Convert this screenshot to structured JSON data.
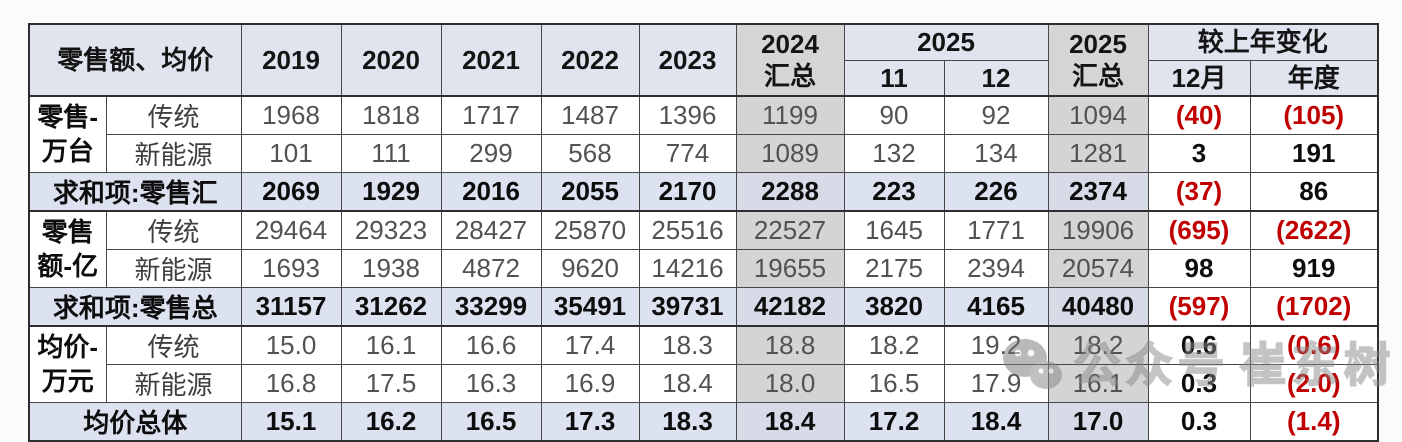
{
  "header": {
    "corner": "零售额、均价",
    "years": [
      "2019",
      "2020",
      "2021",
      "2022",
      "2023"
    ],
    "sum2024": "2024\n汇总",
    "y2025": "2025",
    "m11": "11",
    "m12": "12",
    "sum2025": "2025\n汇总",
    "change": "较上年变化",
    "change_dec": "12月",
    "change_year": "年度"
  },
  "rows": [
    {
      "kind": "data",
      "group": "零售-\n万台",
      "group_span": 2,
      "label": "传统",
      "values": [
        "1968",
        "1818",
        "1717",
        "1487",
        "1396",
        "1199",
        "90",
        "92",
        "1094",
        "(40)",
        "(105)"
      ]
    },
    {
      "kind": "data",
      "label": "新能源",
      "values": [
        "101",
        "111",
        "299",
        "568",
        "774",
        "1089",
        "132",
        "134",
        "1281",
        "3",
        "191"
      ]
    },
    {
      "kind": "summary",
      "label": "求和项:零售汇",
      "values": [
        "2069",
        "1929",
        "2016",
        "2055",
        "2170",
        "2288",
        "223",
        "226",
        "2374",
        "(37)",
        "86"
      ]
    },
    {
      "kind": "data",
      "group": "零售\n额-亿",
      "group_span": 2,
      "label": "传统",
      "values": [
        "29464",
        "29323",
        "28427",
        "25870",
        "25516",
        "22527",
        "1645",
        "1771",
        "19906",
        "(695)",
        "(2622)"
      ]
    },
    {
      "kind": "data",
      "label": "新能源",
      "values": [
        "1693",
        "1938",
        "4872",
        "9620",
        "14216",
        "19655",
        "2175",
        "2394",
        "20574",
        "98",
        "919"
      ]
    },
    {
      "kind": "summary",
      "label": "求和项:零售总",
      "values": [
        "31157",
        "31262",
        "33299",
        "35491",
        "39731",
        "42182",
        "3820",
        "4165",
        "40480",
        "(597)",
        "(1702)"
      ]
    },
    {
      "kind": "data",
      "group": "均价-\n万元",
      "group_span": 2,
      "label": "传统",
      "values": [
        "15.0",
        "16.1",
        "16.6",
        "17.4",
        "18.3",
        "18.8",
        "18.2",
        "19.2",
        "18.2",
        "0.6",
        "(0.6)"
      ]
    },
    {
      "kind": "data",
      "label": "新能源",
      "values": [
        "16.8",
        "17.5",
        "16.3",
        "16.9",
        "18.4",
        "18.0",
        "16.5",
        "17.9",
        "16.1",
        "0.3",
        "(2.0)"
      ]
    },
    {
      "kind": "summary",
      "label": "均价总体",
      "values": [
        "15.1",
        "16.2",
        "16.5",
        "17.3",
        "18.3",
        "18.4",
        "17.2",
        "18.4",
        "17.0",
        "0.3",
        "(1.4)"
      ]
    }
  ],
  "watermark": {
    "icon": "wechat-official-account-icon",
    "text1": "公众号",
    "text2": "崔东树"
  },
  "colors": {
    "header_bg": "#dfe4ee",
    "grey_column_bg": "#d4d4d6",
    "summary_row_bg": "#dde2f0",
    "negative_red": "#c00000",
    "data_text": "#525252",
    "bold_text": "#0d0d0d"
  },
  "chart_data": {
    "type": "table",
    "title": "零售额、均价",
    "columns": [
      "2019",
      "2020",
      "2021",
      "2022",
      "2023",
      "2024汇总",
      "2025-11",
      "2025-12",
      "2025汇总",
      "较上年变化-12月",
      "较上年变化-年度"
    ],
    "rows": [
      {
        "group": "零售-万台",
        "name": "传统",
        "values": [
          1968,
          1818,
          1717,
          1487,
          1396,
          1199,
          90,
          92,
          1094,
          -40,
          -105
        ]
      },
      {
        "group": "零售-万台",
        "name": "新能源",
        "values": [
          101,
          111,
          299,
          568,
          774,
          1089,
          132,
          134,
          1281,
          3,
          191
        ]
      },
      {
        "group": "求和项:零售汇",
        "name": "求和项:零售汇",
        "values": [
          2069,
          1929,
          2016,
          2055,
          2170,
          2288,
          223,
          226,
          2374,
          -37,
          86
        ]
      },
      {
        "group": "零售额-亿",
        "name": "传统",
        "values": [
          29464,
          29323,
          28427,
          25870,
          25516,
          22527,
          1645,
          1771,
          19906,
          -695,
          -2622
        ]
      },
      {
        "group": "零售额-亿",
        "name": "新能源",
        "values": [
          1693,
          1938,
          4872,
          9620,
          14216,
          19655,
          2175,
          2394,
          20574,
          98,
          919
        ]
      },
      {
        "group": "求和项:零售总",
        "name": "求和项:零售总",
        "values": [
          31157,
          31262,
          33299,
          35491,
          39731,
          42182,
          3820,
          4165,
          40480,
          -597,
          -1702
        ]
      },
      {
        "group": "均价-万元",
        "name": "传统",
        "values": [
          15.0,
          16.1,
          16.6,
          17.4,
          18.3,
          18.8,
          18.2,
          19.2,
          18.2,
          0.6,
          -0.6
        ]
      },
      {
        "group": "均价-万元",
        "name": "新能源",
        "values": [
          16.8,
          17.5,
          16.3,
          16.9,
          18.4,
          18.0,
          16.5,
          17.9,
          16.1,
          0.3,
          -2.0
        ]
      },
      {
        "group": "均价总体",
        "name": "均价总体",
        "values": [
          15.1,
          16.2,
          16.5,
          17.3,
          18.3,
          18.4,
          17.2,
          18.4,
          17.0,
          0.3,
          -1.4
        ]
      }
    ],
    "notes": "values in parentheses on screen = negative changes shown in red"
  }
}
